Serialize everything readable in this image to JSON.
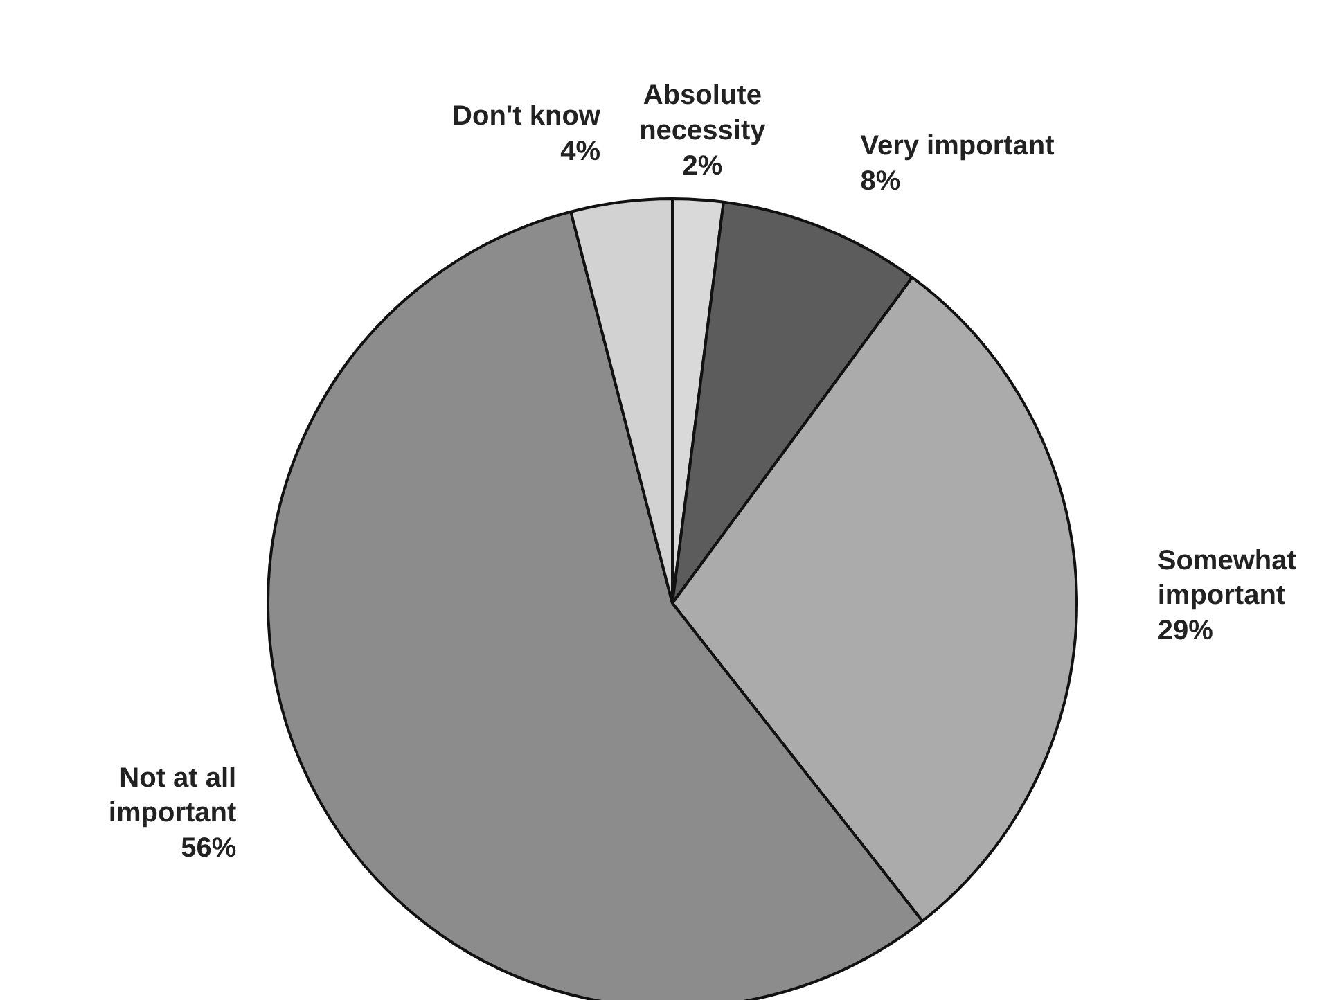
{
  "chart_data": {
    "type": "pie",
    "categories": [
      "Absolute necessity",
      "Very important",
      "Somewhat important",
      "Not at all important",
      "Don't know"
    ],
    "values": [
      2,
      8,
      29,
      56,
      4
    ],
    "value_labels": [
      "2%",
      "8%",
      "29%",
      "56%",
      "4%"
    ],
    "colors": [
      "#d9d9d9",
      "#5c5c5c",
      "#ababab",
      "#8c8c8c",
      "#d2d2d2"
    ],
    "legend": false
  }
}
